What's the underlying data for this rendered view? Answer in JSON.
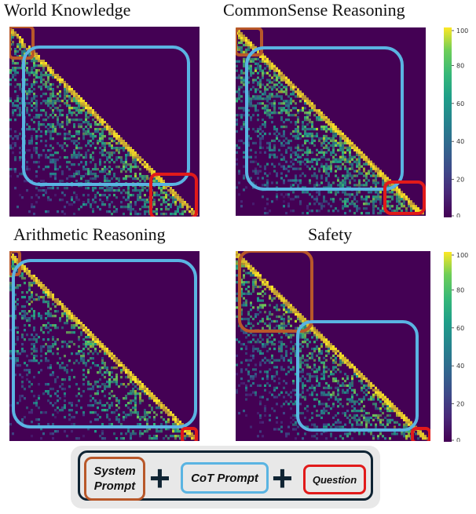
{
  "panels": [
    {
      "title": "World Knowledge"
    },
    {
      "title": "CommonSense Reasoning"
    },
    {
      "title": "Arithmetic Reasoning"
    },
    {
      "title": "Safety"
    }
  ],
  "colorbar": {
    "ticks": [
      "100",
      "80",
      "60",
      "40",
      "20",
      "0"
    ],
    "min": 0,
    "max": 100,
    "colormap": "viridis"
  },
  "legend": {
    "system_prompt": "System Prompt",
    "cot_prompt": "CoT Prompt",
    "question": "Question",
    "plus": "+"
  },
  "colors": {
    "system_prompt_box": "#b8582a",
    "cot_prompt_box": "#5ab4e2",
    "question_box": "#e11a1a",
    "background": "#440154",
    "high": "#fde725"
  }
}
